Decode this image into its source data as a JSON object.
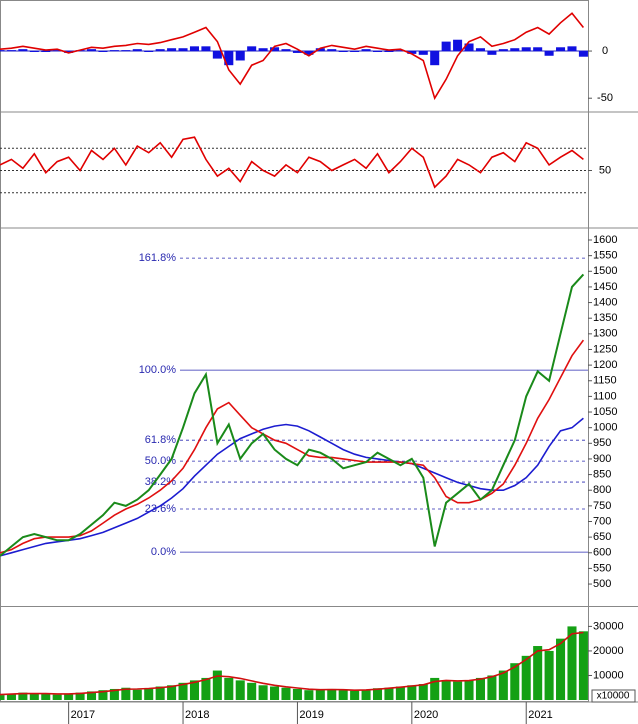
{
  "chart_data": [
    {
      "type": "line",
      "ylim": [
        -62.5,
        52
      ],
      "yticks": [
        -50,
        0
      ],
      "zero_line": true,
      "series": [
        {
          "mark": "bar",
          "color": "#1010e0",
          "values": [
            1,
            1,
            2,
            -1,
            -1,
            1,
            -2,
            1,
            2,
            -1,
            1,
            1,
            2,
            -1,
            2,
            3,
            3,
            5,
            5,
            -8,
            -15,
            -10,
            5,
            3,
            4,
            2,
            -2,
            -4,
            3,
            2,
            -1,
            -1,
            2,
            -1,
            -1,
            1,
            -3,
            -4,
            -15,
            10,
            12,
            8,
            3,
            -4,
            2,
            3,
            4,
            4,
            -5,
            4,
            5,
            -6
          ]
        },
        {
          "mark": "line",
          "color": "#e00000",
          "values": [
            2,
            3,
            5,
            3,
            1,
            2,
            -2,
            1,
            4,
            3,
            5,
            6,
            8,
            7,
            9,
            12,
            15,
            20,
            25,
            10,
            -20,
            -35,
            -15,
            -10,
            5,
            8,
            2,
            -5,
            3,
            6,
            4,
            2,
            5,
            3,
            1,
            2,
            -3,
            -10,
            -50,
            -30,
            -5,
            10,
            15,
            5,
            8,
            12,
            20,
            25,
            18,
            30,
            40,
            25
          ]
        }
      ]
    },
    {
      "type": "line",
      "ylim": [
        0,
        100
      ],
      "yticks": [
        50
      ],
      "hlines": [
        30,
        50,
        70
      ],
      "series": [
        {
          "mark": "line",
          "color": "#e00000",
          "values": [
            55,
            60,
            52,
            65,
            48,
            58,
            62,
            50,
            68,
            60,
            70,
            55,
            72,
            66,
            75,
            62,
            78,
            80,
            60,
            45,
            52,
            40,
            58,
            50,
            45,
            55,
            48,
            62,
            58,
            50,
            55,
            60,
            52,
            65,
            48,
            58,
            70,
            62,
            35,
            45,
            60,
            55,
            48,
            62,
            66,
            58,
            75,
            70,
            55,
            62,
            68,
            60
          ]
        }
      ]
    },
    {
      "type": "line",
      "ylim": [
        433,
        1632
      ],
      "yticks": [
        500,
        550,
        600,
        650,
        700,
        750,
        800,
        850,
        900,
        950,
        1000,
        1050,
        1100,
        1150,
        1200,
        1250,
        1300,
        1350,
        1400,
        1450,
        1500,
        1550,
        1600
      ],
      "levels": [
        {
          "label": "161.8%",
          "value": 1542,
          "style": "dashed"
        },
        {
          "label": "100.0%",
          "value": 1184,
          "style": "solid"
        },
        {
          "label": "61.8%",
          "value": 960,
          "style": "dashed"
        },
        {
          "label": "50.0%",
          "value": 893,
          "style": "dashed"
        },
        {
          "label": "38.2%",
          "value": 826,
          "style": "dashed"
        },
        {
          "label": "23.6%",
          "value": 740,
          "style": "dashed"
        },
        {
          "label": "0.0%",
          "value": 602,
          "style": "solid"
        }
      ],
      "series": [
        {
          "mark": "line",
          "color": "#1c1cd0",
          "values": [
            590,
            600,
            610,
            620,
            630,
            635,
            640,
            645,
            655,
            665,
            680,
            695,
            710,
            730,
            750,
            775,
            805,
            845,
            880,
            915,
            940,
            965,
            980,
            995,
            1005,
            1010,
            1005,
            990,
            970,
            950,
            930,
            915,
            905,
            900,
            895,
            890,
            885,
            870,
            855,
            840,
            825,
            815,
            805,
            800,
            800,
            815,
            840,
            880,
            940,
            990,
            1000,
            1030
          ]
        },
        {
          "mark": "line",
          "color": "#e01010",
          "values": [
            600,
            610,
            630,
            645,
            650,
            650,
            650,
            655,
            670,
            695,
            720,
            740,
            755,
            775,
            800,
            830,
            870,
            930,
            1000,
            1060,
            1080,
            1040,
            1000,
            980,
            960,
            950,
            930,
            910,
            905,
            905,
            900,
            895,
            890,
            890,
            890,
            890,
            885,
            880,
            840,
            780,
            760,
            760,
            770,
            790,
            820,
            880,
            950,
            1030,
            1090,
            1160,
            1230,
            1280
          ]
        },
        {
          "mark": "line",
          "color": "#1a8a1a",
          "values": [
            590,
            620,
            650,
            660,
            650,
            640,
            640,
            660,
            690,
            720,
            760,
            750,
            770,
            800,
            850,
            900,
            1000,
            1110,
            1170,
            950,
            1010,
            900,
            950,
            980,
            930,
            900,
            880,
            930,
            920,
            900,
            870,
            880,
            890,
            920,
            900,
            880,
            900,
            840,
            620,
            760,
            790,
            820,
            770,
            800,
            880,
            960,
            1100,
            1180,
            1150,
            1300,
            1450,
            1490
          ]
        }
      ]
    },
    {
      "type": "bar",
      "ylim": [
        0,
        37500
      ],
      "yticks": [
        10000,
        20000,
        30000
      ],
      "unit_label": "x10000",
      "x": [
        2016.4,
        2016.5,
        2016.6,
        2016.7,
        2016.8,
        2016.9,
        2017.0,
        2017.1,
        2017.2,
        2017.3,
        2017.4,
        2017.5,
        2017.6,
        2017.7,
        2017.8,
        2017.9,
        2018.0,
        2018.1,
        2018.2,
        2018.3,
        2018.4,
        2018.5,
        2018.6,
        2018.7,
        2018.8,
        2018.9,
        2019.0,
        2019.1,
        2019.2,
        2019.3,
        2019.4,
        2019.5,
        2019.6,
        2019.7,
        2019.8,
        2019.9,
        2020.0,
        2020.1,
        2020.2,
        2020.3,
        2020.4,
        2020.5,
        2020.6,
        2020.7,
        2020.8,
        2020.9,
        2021.0,
        2021.1,
        2021.2,
        2021.3,
        2021.4,
        2021.5
      ],
      "xlim": [
        2016.4,
        2021.54
      ],
      "xticks": [
        2017,
        2018,
        2019,
        2020,
        2021
      ],
      "series": [
        {
          "mark": "bar",
          "color": "#14a014",
          "values": [
            2000,
            2500,
            3000,
            2500,
            2800,
            2200,
            2600,
            3000,
            3500,
            4000,
            4500,
            5000,
            4200,
            4800,
            5500,
            6000,
            7000,
            8000,
            9000,
            12000,
            9000,
            8000,
            7000,
            6000,
            5500,
            5000,
            4500,
            4000,
            4200,
            4500,
            4000,
            3800,
            4200,
            4800,
            5000,
            5500,
            6000,
            6500,
            9000,
            8000,
            7500,
            8000,
            9000,
            10000,
            12000,
            15000,
            18000,
            22000,
            20000,
            25000,
            30000,
            28000
          ]
        },
        {
          "mark": "line",
          "color": "#d01010",
          "values": [
            2200,
            2400,
            2600,
            2600,
            2600,
            2500,
            2500,
            2700,
            3000,
            3400,
            3900,
            4400,
            4500,
            4700,
            5000,
            5500,
            6300,
            7200,
            8300,
            9800,
            9500,
            8800,
            7800,
            6800,
            6000,
            5400,
            4900,
            4400,
            4200,
            4300,
            4200,
            4000,
            4100,
            4400,
            4800,
            5200,
            5700,
            6200,
            7500,
            8000,
            7800,
            7900,
            8500,
            9500,
            11000,
            13500,
            16500,
            20000,
            20500,
            23000,
            27000,
            27500
          ]
        }
      ]
    }
  ]
}
